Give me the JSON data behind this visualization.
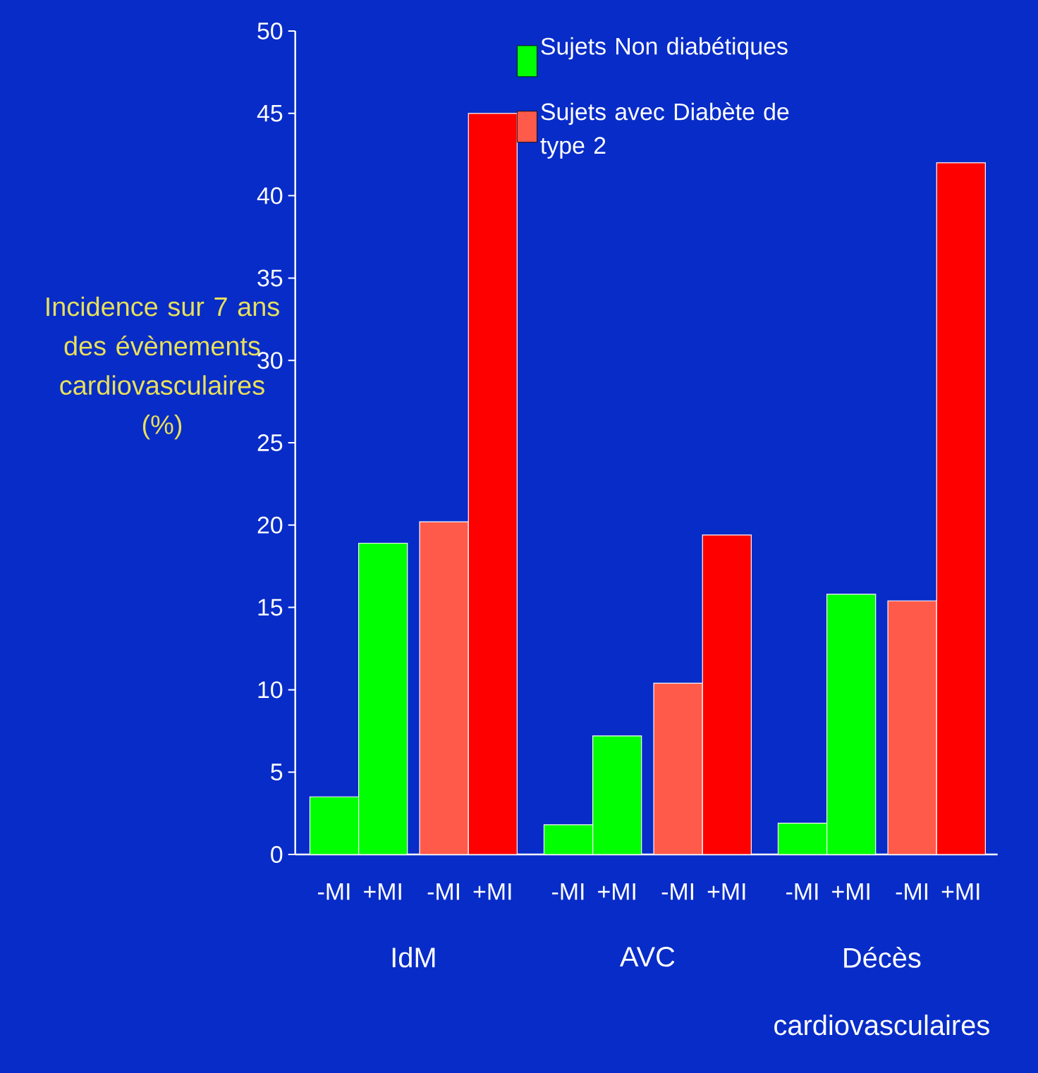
{
  "chart_data": {
    "type": "bar",
    "ylabel": "Incidence sur 7 ans des évènements cardiovasculaires (%)",
    "categories": [
      "-MI",
      "+MI",
      "-MI",
      "+MI",
      "-MI",
      "+MI",
      "-MI",
      "+MI",
      "-MI",
      "+MI",
      "-MI",
      "+MI"
    ],
    "series": [
      {
        "name": "Sujets Non diabétiques",
        "color": "#00ff00",
        "values": [
          3.5,
          18.9,
          null,
          null,
          1.8,
          7.2,
          null,
          null,
          1.9,
          15.8,
          null,
          null
        ]
      },
      {
        "name": "Sujets avec Diabète de type 2",
        "color": "#ff5a4a",
        "colors": [
          null,
          null,
          "#ff5a4a",
          "#ff0000",
          null,
          null,
          "#ff5a4a",
          "#ff0000",
          null,
          null,
          "#ff5a4a",
          "#ff0000"
        ],
        "values": [
          null,
          null,
          20.2,
          45,
          null,
          null,
          10.4,
          19.4,
          null,
          null,
          15.4,
          42
        ]
      }
    ],
    "annotations": [
      "IdM",
      "AVC",
      "Décès cardiovasculaires"
    ],
    "ylim": [
      0,
      50
    ],
    "yticks": [
      0,
      5,
      10,
      15,
      20,
      25,
      30,
      35,
      40,
      45,
      50
    ],
    "legend": "top"
  }
}
